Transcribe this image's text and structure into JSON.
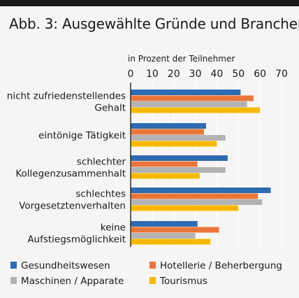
{
  "chart_data": {
    "type": "bar",
    "orientation": "horizontal",
    "title": "Abb. 3: Ausgewählte Gründe und Branchen",
    "xlabel": "in Prozent der Teilnehmer",
    "xlim": [
      0,
      70
    ],
    "ticks": [
      "0",
      "10",
      "20",
      "30",
      "40",
      "50",
      "60",
      "70"
    ],
    "grid": true,
    "legend_position": "bottom",
    "categories": [
      [
        "nicht zufriedenstellendes",
        "Gehalt"
      ],
      [
        "eintönige Tätigkeit"
      ],
      [
        "schlechter",
        "Kollegenzusammenhalt"
      ],
      [
        "schlechtes",
        "Vorgesetztenverhalten"
      ],
      [
        "keine",
        "Aufstiegsmöglichkeit"
      ]
    ],
    "series": [
      {
        "name": "Gesundheitswesen",
        "color": "#2e6bb0",
        "values": [
          51,
          35,
          45,
          65,
          31
        ]
      },
      {
        "name": "Hotellerie / Beherbergung",
        "color": "#e8763a",
        "values": [
          57,
          34,
          31,
          59,
          41
        ]
      },
      {
        "name": "Maschinen / Apparate",
        "color": "#b3b3b3",
        "values": [
          54,
          44,
          44,
          61,
          30
        ]
      },
      {
        "name": "Tourismus",
        "color": "#f5b800",
        "values": [
          60,
          40,
          32,
          50,
          37
        ]
      }
    ]
  }
}
